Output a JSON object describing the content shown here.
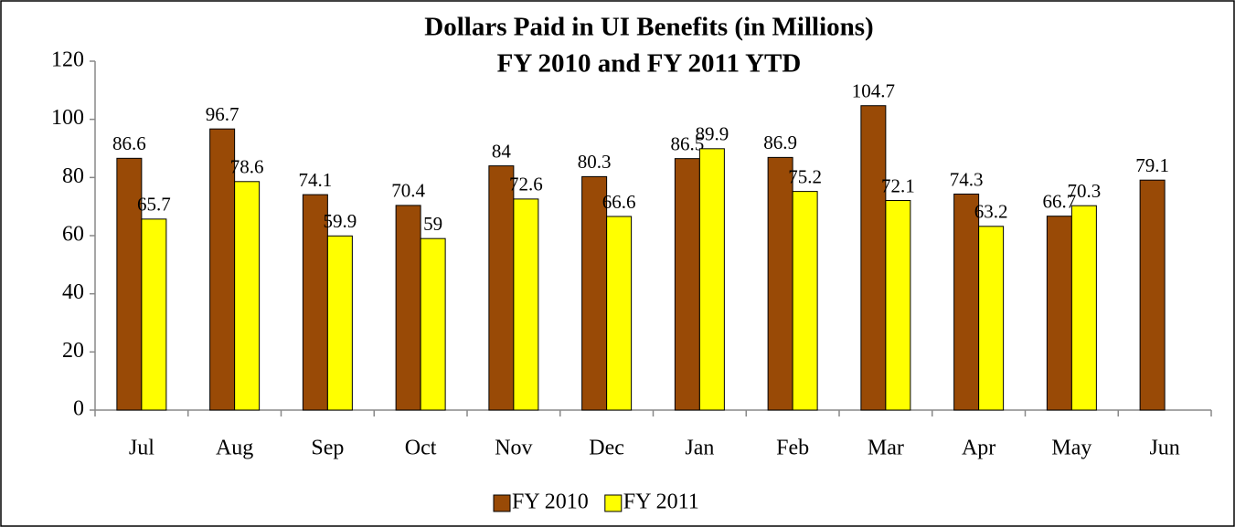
{
  "chart_data": {
    "type": "bar",
    "title": "Dollars Paid in UI Benefits (in Millions)",
    "subtitle": "FY 2010 and FY 2011 YTD",
    "categories": [
      "Jul",
      "Aug",
      "Sep",
      "Oct",
      "Nov",
      "Dec",
      "Jan",
      "Feb",
      "Mar",
      "Apr",
      "May",
      "Jun"
    ],
    "series": [
      {
        "name": "FY 2010",
        "color": "#994a06",
        "values": [
          86.6,
          96.7,
          74.1,
          70.4,
          84,
          80.3,
          86.5,
          86.9,
          104.7,
          74.3,
          66.7,
          79.1
        ]
      },
      {
        "name": "FY 2011",
        "color": "#ffff00",
        "values": [
          65.7,
          78.6,
          59.9,
          59,
          72.6,
          66.6,
          89.9,
          75.2,
          72.1,
          63.2,
          70.3,
          null
        ]
      }
    ],
    "ylim": [
      0,
      120
    ],
    "yticks": [
      0,
      20,
      40,
      60,
      80,
      100,
      120
    ],
    "grid": false,
    "legend": "bottom"
  }
}
